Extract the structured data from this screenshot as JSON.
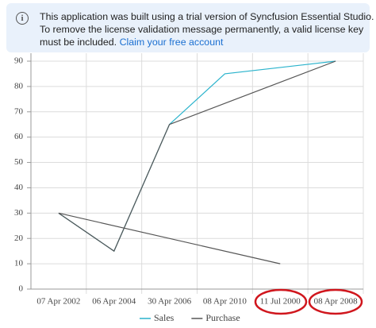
{
  "banner": {
    "lines": [
      "This application was built using a trial version of Syncfusion Essential Studio.",
      "To remove the license validation message permanently, a valid license key",
      "must be included."
    ],
    "link": "Claim your free account"
  },
  "chart_data": {
    "type": "line",
    "categories": [
      "07 Apr 2002",
      "06 Apr 2004",
      "30 Apr 2006",
      "08 Apr 2010",
      "11 Jul 2000",
      "08 Apr 2008"
    ],
    "ylim": [
      0,
      90
    ],
    "yticks": [
      0,
      10,
      20,
      30,
      40,
      50,
      60,
      70,
      80,
      90
    ],
    "grid": true,
    "legend": "bottom",
    "series": [
      {
        "name": "Sales",
        "color": "#2ab3cc",
        "x": [
          "07 Apr 2002",
          "06 Apr 2004",
          "30 Apr 2006",
          "08 Apr 2010",
          "08 Apr 2008"
        ],
        "values": [
          30,
          15,
          65,
          85,
          90
        ]
      },
      {
        "name": "Purchase",
        "color": "#555555",
        "x": [
          "11 Jul 2000",
          "07 Apr 2002",
          "06 Apr 2004",
          "30 Apr 2006",
          "08 Apr 2008"
        ],
        "values": [
          10,
          30,
          15,
          65,
          90
        ]
      }
    ]
  }
}
